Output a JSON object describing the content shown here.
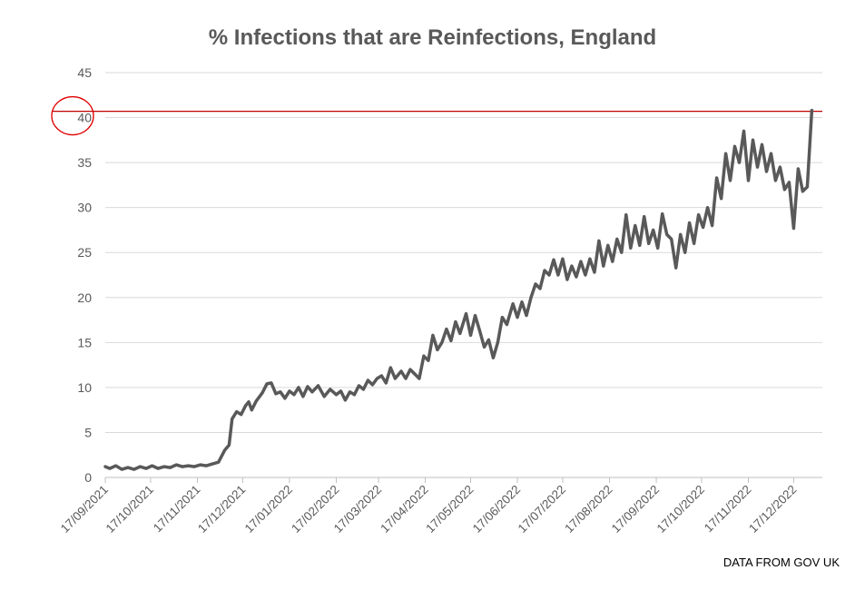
{
  "chart_data": {
    "type": "line",
    "title": "% Infections that are Reinfections, England",
    "source_note": "DATA FROM GOV UK",
    "xlabel": "",
    "ylabel": "",
    "ylim": [
      0,
      45
    ],
    "y_ticks": [
      "0",
      "5",
      "10",
      "15",
      "20",
      "25",
      "30",
      "35",
      "40",
      "45"
    ],
    "x_range": [
      "2021-09-17",
      "2023-01-05"
    ],
    "x_tick_labels": [
      "17/09/2021",
      "17/10/2021",
      "17/11/2021",
      "17/12/2021",
      "17/01/2022",
      "17/02/2022",
      "17/03/2022",
      "17/04/2022",
      "17/05/2022",
      "17/06/2022",
      "17/07/2022",
      "17/08/2022",
      "17/09/2022",
      "17/10/2022",
      "17/11/2022",
      "17/12/2022"
    ],
    "x_tick_dates": [
      "2021-09-17",
      "2021-10-17",
      "2021-11-17",
      "2021-12-17",
      "2022-01-17",
      "2022-02-17",
      "2022-03-17",
      "2022-04-17",
      "2022-05-17",
      "2022-06-17",
      "2022-07-17",
      "2022-08-17",
      "2022-09-17",
      "2022-10-17",
      "2022-11-17",
      "2022-12-17"
    ],
    "grid": "horizontal",
    "reference_line": {
      "y": 40.7,
      "color": "#c00000"
    },
    "highlight_circle": {
      "y": 40,
      "color": "#e00000"
    },
    "series": [
      {
        "color": "#595959",
        "points": [
          [
            "2021-09-17",
            1.2
          ],
          [
            "2021-09-20",
            1.0
          ],
          [
            "2021-09-24",
            1.3
          ],
          [
            "2021-09-28",
            0.9
          ],
          [
            "2021-10-02",
            1.1
          ],
          [
            "2021-10-06",
            0.9
          ],
          [
            "2021-10-10",
            1.2
          ],
          [
            "2021-10-14",
            1.0
          ],
          [
            "2021-10-18",
            1.3
          ],
          [
            "2021-10-22",
            1.0
          ],
          [
            "2021-10-26",
            1.2
          ],
          [
            "2021-10-30",
            1.1
          ],
          [
            "2021-11-03",
            1.4
          ],
          [
            "2021-11-07",
            1.2
          ],
          [
            "2021-11-11",
            1.3
          ],
          [
            "2021-11-15",
            1.2
          ],
          [
            "2021-11-19",
            1.4
          ],
          [
            "2021-11-23",
            1.3
          ],
          [
            "2021-11-27",
            1.5
          ],
          [
            "2021-12-01",
            1.7
          ],
          [
            "2021-12-05",
            3.0
          ],
          [
            "2021-12-08",
            3.6
          ],
          [
            "2021-12-10",
            6.5
          ],
          [
            "2021-12-13",
            7.3
          ],
          [
            "2021-12-16",
            7.0
          ],
          [
            "2021-12-19",
            8.0
          ],
          [
            "2021-12-21",
            8.4
          ],
          [
            "2021-12-23",
            7.5
          ],
          [
            "2021-12-26",
            8.5
          ],
          [
            "2021-12-30",
            9.4
          ],
          [
            "2022-01-02",
            10.4
          ],
          [
            "2022-01-05",
            10.5
          ],
          [
            "2022-01-08",
            9.3
          ],
          [
            "2022-01-11",
            9.5
          ],
          [
            "2022-01-14",
            8.8
          ],
          [
            "2022-01-17",
            9.6
          ],
          [
            "2022-01-20",
            9.2
          ],
          [
            "2022-01-23",
            10.0
          ],
          [
            "2022-01-26",
            9.0
          ],
          [
            "2022-01-29",
            10.1
          ],
          [
            "2022-02-01",
            9.5
          ],
          [
            "2022-02-05",
            10.2
          ],
          [
            "2022-02-09",
            9.0
          ],
          [
            "2022-02-13",
            9.8
          ],
          [
            "2022-02-17",
            9.2
          ],
          [
            "2022-02-20",
            9.6
          ],
          [
            "2022-02-23",
            8.6
          ],
          [
            "2022-02-26",
            9.5
          ],
          [
            "2022-03-01",
            9.2
          ],
          [
            "2022-03-04",
            10.2
          ],
          [
            "2022-03-07",
            9.8
          ],
          [
            "2022-03-10",
            10.8
          ],
          [
            "2022-03-13",
            10.3
          ],
          [
            "2022-03-16",
            11.0
          ],
          [
            "2022-03-19",
            11.3
          ],
          [
            "2022-03-22",
            10.5
          ],
          [
            "2022-03-25",
            12.2
          ],
          [
            "2022-03-28",
            11.0
          ],
          [
            "2022-04-01",
            11.8
          ],
          [
            "2022-04-04",
            11.0
          ],
          [
            "2022-04-07",
            12.0
          ],
          [
            "2022-04-10",
            11.5
          ],
          [
            "2022-04-13",
            11.0
          ],
          [
            "2022-04-16",
            13.5
          ],
          [
            "2022-04-19",
            13.0
          ],
          [
            "2022-04-22",
            15.8
          ],
          [
            "2022-04-25",
            14.2
          ],
          [
            "2022-04-28",
            15.0
          ],
          [
            "2022-05-01",
            16.5
          ],
          [
            "2022-05-04",
            15.2
          ],
          [
            "2022-05-07",
            17.3
          ],
          [
            "2022-05-10",
            16.0
          ],
          [
            "2022-05-14",
            18.2
          ],
          [
            "2022-05-17",
            15.8
          ],
          [
            "2022-05-20",
            18.0
          ],
          [
            "2022-05-23",
            16.3
          ],
          [
            "2022-05-26",
            14.5
          ],
          [
            "2022-05-29",
            15.3
          ],
          [
            "2022-06-01",
            13.3
          ],
          [
            "2022-06-04",
            15.0
          ],
          [
            "2022-06-07",
            17.8
          ],
          [
            "2022-06-10",
            17.0
          ],
          [
            "2022-06-14",
            19.3
          ],
          [
            "2022-06-17",
            17.8
          ],
          [
            "2022-06-20",
            19.5
          ],
          [
            "2022-06-23",
            18.0
          ],
          [
            "2022-06-26",
            20.0
          ],
          [
            "2022-06-29",
            21.5
          ],
          [
            "2022-07-02",
            21.0
          ],
          [
            "2022-07-05",
            23.0
          ],
          [
            "2022-07-08",
            22.5
          ],
          [
            "2022-07-11",
            24.2
          ],
          [
            "2022-07-14",
            22.5
          ],
          [
            "2022-07-17",
            24.3
          ],
          [
            "2022-07-20",
            22.0
          ],
          [
            "2022-07-23",
            23.5
          ],
          [
            "2022-07-26",
            22.3
          ],
          [
            "2022-07-29",
            24.0
          ],
          [
            "2022-08-01",
            22.5
          ],
          [
            "2022-08-04",
            24.3
          ],
          [
            "2022-08-07",
            22.8
          ],
          [
            "2022-08-10",
            26.3
          ],
          [
            "2022-08-13",
            23.5
          ],
          [
            "2022-08-16",
            25.8
          ],
          [
            "2022-08-19",
            24.0
          ],
          [
            "2022-08-22",
            26.5
          ],
          [
            "2022-08-25",
            25.0
          ],
          [
            "2022-08-28",
            29.2
          ],
          [
            "2022-08-31",
            25.5
          ],
          [
            "2022-09-03",
            28.0
          ],
          [
            "2022-09-06",
            25.8
          ],
          [
            "2022-09-09",
            29.0
          ],
          [
            "2022-09-12",
            26.0
          ],
          [
            "2022-09-15",
            27.5
          ],
          [
            "2022-09-18",
            25.5
          ],
          [
            "2022-09-21",
            29.3
          ],
          [
            "2022-09-24",
            27.0
          ],
          [
            "2022-09-27",
            26.5
          ],
          [
            "2022-09-30",
            23.3
          ],
          [
            "2022-10-03",
            27.0
          ],
          [
            "2022-10-06",
            25.0
          ],
          [
            "2022-10-09",
            28.3
          ],
          [
            "2022-10-12",
            26.0
          ],
          [
            "2022-10-15",
            29.2
          ],
          [
            "2022-10-18",
            27.8
          ],
          [
            "2022-10-21",
            30.0
          ],
          [
            "2022-10-24",
            28.0
          ],
          [
            "2022-10-27",
            33.3
          ],
          [
            "2022-10-30",
            31.0
          ],
          [
            "2022-11-02",
            36.0
          ],
          [
            "2022-11-05",
            33.0
          ],
          [
            "2022-11-08",
            36.8
          ],
          [
            "2022-11-11",
            35.0
          ],
          [
            "2022-11-14",
            38.5
          ],
          [
            "2022-11-17",
            33.0
          ],
          [
            "2022-11-20",
            37.5
          ],
          [
            "2022-11-23",
            34.5
          ],
          [
            "2022-11-26",
            37.0
          ],
          [
            "2022-11-29",
            34.0
          ],
          [
            "2022-12-02",
            36.0
          ],
          [
            "2022-12-05",
            33.0
          ],
          [
            "2022-12-08",
            34.5
          ],
          [
            "2022-12-11",
            32.0
          ],
          [
            "2022-12-14",
            32.8
          ],
          [
            "2022-12-17",
            27.7
          ],
          [
            "2022-12-20",
            34.3
          ],
          [
            "2022-12-23",
            31.8
          ],
          [
            "2022-12-26",
            32.3
          ],
          [
            "2022-12-29",
            40.8
          ]
        ]
      }
    ]
  }
}
